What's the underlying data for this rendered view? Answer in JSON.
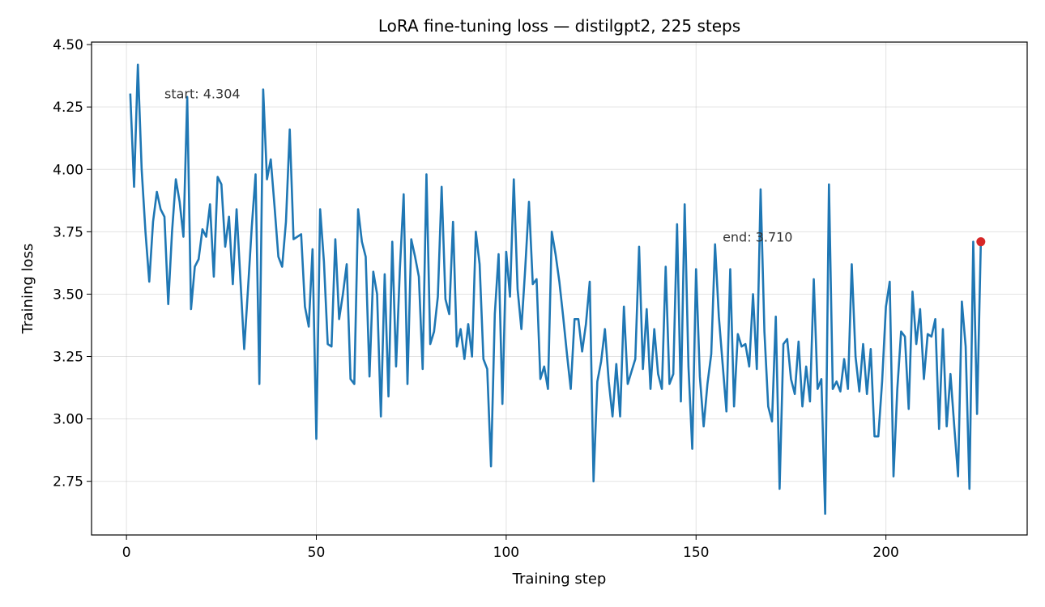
{
  "chart_data": {
    "type": "line",
    "title": "LoRA fine-tuning loss — distilgpt2, 225 steps",
    "xlabel": "Training step",
    "ylabel": "Training loss",
    "xlim": [
      -9.2,
      237.2
    ],
    "ylim": [
      2.535,
      4.51
    ],
    "xticks": [
      0,
      50,
      100,
      150,
      200
    ],
    "yticks": [
      2.75,
      3.0,
      3.25,
      3.5,
      3.75,
      4.0,
      4.25,
      4.5
    ],
    "xtick_labels": [
      "0",
      "50",
      "100",
      "150",
      "200"
    ],
    "ytick_labels": [
      "2.75",
      "3.00",
      "3.25",
      "3.50",
      "3.75",
      "4.00",
      "4.25",
      "4.50"
    ],
    "grid": true,
    "series": [
      {
        "color": "#1f77b4",
        "x": [
          1,
          2,
          3,
          4,
          5,
          6,
          7,
          8,
          9,
          10,
          11,
          12,
          13,
          14,
          15,
          16,
          17,
          18,
          19,
          20,
          21,
          22,
          23,
          24,
          25,
          26,
          27,
          28,
          29,
          30,
          31,
          32,
          33,
          34,
          35,
          36,
          37,
          38,
          39,
          40,
          41,
          42,
          43,
          44,
          45,
          46,
          47,
          48,
          49,
          50,
          51,
          52,
          53,
          54,
          55,
          56,
          57,
          58,
          59,
          60,
          61,
          62,
          63,
          64,
          65,
          66,
          67,
          68,
          69,
          70,
          71,
          72,
          73,
          74,
          75,
          76,
          77,
          78,
          79,
          80,
          81,
          82,
          83,
          84,
          85,
          86,
          87,
          88,
          89,
          90,
          91,
          92,
          93,
          94,
          95,
          96,
          97,
          98,
          99,
          100,
          101,
          102,
          103,
          104,
          105,
          106,
          107,
          108,
          109,
          110,
          111,
          112,
          113,
          114,
          115,
          116,
          117,
          118,
          119,
          120,
          121,
          122,
          123,
          124,
          125,
          126,
          127,
          128,
          129,
          130,
          131,
          132,
          133,
          134,
          135,
          136,
          137,
          138,
          139,
          140,
          141,
          142,
          143,
          144,
          145,
          146,
          147,
          148,
          149,
          150,
          151,
          152,
          153,
          154,
          155,
          156,
          157,
          158,
          159,
          160,
          161,
          162,
          163,
          164,
          165,
          166,
          167,
          168,
          169,
          170,
          171,
          172,
          173,
          174,
          175,
          176,
          177,
          178,
          179,
          180,
          181,
          182,
          183,
          184,
          185,
          186,
          187,
          188,
          189,
          190,
          191,
          192,
          193,
          194,
          195,
          196,
          197,
          198,
          199,
          200,
          201,
          202,
          203,
          204,
          205,
          206,
          207,
          208,
          209,
          210,
          211,
          212,
          213,
          214,
          215,
          216,
          217,
          218,
          219,
          220,
          221,
          222,
          223,
          224,
          225
        ],
        "y": [
          4.304,
          3.93,
          4.42,
          4.0,
          3.75,
          3.55,
          3.79,
          3.91,
          3.84,
          3.81,
          3.46,
          3.75,
          3.96,
          3.87,
          3.73,
          4.29,
          3.44,
          3.61,
          3.64,
          3.76,
          3.73,
          3.86,
          3.57,
          3.97,
          3.94,
          3.69,
          3.81,
          3.54,
          3.84,
          3.56,
          3.28,
          3.52,
          3.77,
          3.98,
          3.14,
          4.32,
          3.96,
          4.04,
          3.85,
          3.65,
          3.61,
          3.79,
          4.16,
          3.72,
          3.73,
          3.74,
          3.45,
          3.37,
          3.68,
          2.92,
          3.84,
          3.63,
          3.3,
          3.29,
          3.72,
          3.4,
          3.5,
          3.62,
          3.16,
          3.14,
          3.84,
          3.71,
          3.65,
          3.17,
          3.59,
          3.5,
          3.01,
          3.58,
          3.09,
          3.71,
          3.21,
          3.6,
          3.9,
          3.14,
          3.72,
          3.65,
          3.57,
          3.2,
          3.98,
          3.3,
          3.35,
          3.49,
          3.93,
          3.48,
          3.42,
          3.79,
          3.29,
          3.36,
          3.24,
          3.38,
          3.25,
          3.75,
          3.62,
          3.24,
          3.2,
          2.81,
          3.42,
          3.66,
          3.06,
          3.67,
          3.49,
          3.96,
          3.52,
          3.36,
          3.6,
          3.87,
          3.54,
          3.56,
          3.16,
          3.21,
          3.12,
          3.75,
          3.66,
          3.55,
          3.41,
          3.26,
          3.12,
          3.4,
          3.4,
          3.27,
          3.38,
          3.55,
          2.75,
          3.15,
          3.23,
          3.36,
          3.15,
          3.01,
          3.22,
          3.01,
          3.45,
          3.14,
          3.19,
          3.24,
          3.69,
          3.2,
          3.44,
          3.12,
          3.36,
          3.18,
          3.12,
          3.61,
          3.14,
          3.18,
          3.78,
          3.07,
          3.86,
          3.21,
          2.88,
          3.6,
          3.17,
          2.97,
          3.14,
          3.26,
          3.7,
          3.41,
          3.22,
          3.03,
          3.6,
          3.05,
          3.34,
          3.29,
          3.3,
          3.21,
          3.5,
          3.2,
          3.92,
          3.35,
          3.05,
          2.99,
          3.41,
          2.72,
          3.3,
          3.32,
          3.16,
          3.1,
          3.31,
          3.05,
          3.21,
          3.07,
          3.56,
          3.12,
          3.16,
          2.62,
          3.94,
          3.12,
          3.15,
          3.11,
          3.24,
          3.12,
          3.62,
          3.25,
          3.11,
          3.3,
          3.1,
          3.28,
          2.93,
          2.93,
          3.15,
          3.45,
          3.55,
          2.77,
          3.12,
          3.35,
          3.33,
          3.04,
          3.51,
          3.3,
          3.44,
          3.16,
          3.34,
          3.33,
          3.4,
          2.96,
          3.36,
          2.97,
          3.18,
          2.97,
          2.77,
          3.47,
          3.29,
          2.72,
          3.71,
          3.02,
          3.71
        ]
      }
    ],
    "end_point": {
      "x": 225,
      "y": 3.71,
      "color": "#d62728"
    },
    "annotations": [
      {
        "text": "start: 4.304",
        "x": 10,
        "y": 4.304,
        "anchor": "start"
      },
      {
        "text": "end: 3.710",
        "x": 157,
        "y": 3.73,
        "anchor": "start"
      }
    ]
  }
}
